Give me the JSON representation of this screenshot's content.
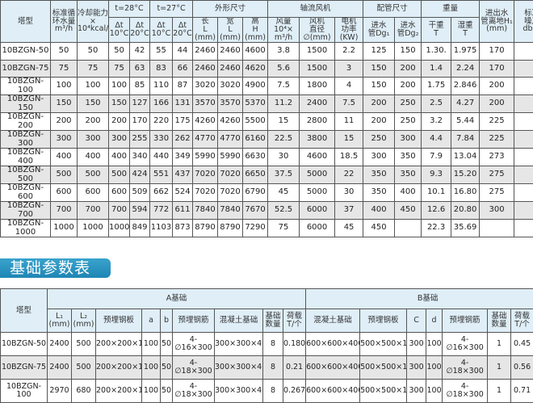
{
  "main_table": {
    "header_row1": [
      {
        "text": "塔型",
        "rs": 2
      },
      {
        "text": "标准循\n环水量\nm³/h",
        "rs": 2
      },
      {
        "text": "冷却能力\n×\n10⁴kcal/h",
        "rs": 2
      },
      {
        "text": "t=28°C",
        "cs": 2
      },
      {
        "text": "t=27°C",
        "cs": 2
      },
      {
        "text": "外形尺寸",
        "cs": 3
      },
      {
        "text": "轴流风机",
        "cs": 3
      },
      {
        "text": "配管尺寸",
        "cs": 2
      },
      {
        "text": "重量",
        "cs": 2
      },
      {
        "text": "进出水\n管离地H₁\n(mm)",
        "rs": 2
      },
      {
        "text": "标准\n噪声\ndb(A",
        "rs": 2
      }
    ],
    "header_row2": [
      "Δt\n10°C",
      "Δt\n20°C",
      "Δt\n10°C",
      "Δt\n20°C",
      "长\nL\n(mm)",
      "宽\nL\n(mm)",
      "高\nH\n(mm)",
      "风量10⁴×\nm³/h",
      "风机\n直径\n∅(mm)",
      "电机\n功率\n(KW)",
      "进水\n管Dg₁",
      "进水\n管Dg₂",
      "干重\nT",
      "湿重\nT"
    ],
    "rows": [
      [
        "10BZGN-50",
        "50",
        "50",
        "50",
        "42",
        "55",
        "44",
        "2460",
        "2460",
        "4600",
        "3.8",
        "1500",
        "2.2",
        "125",
        "150",
        "1.30.",
        "1.975",
        "170",
        ""
      ],
      [
        "10BZGN-75",
        "75",
        "75",
        "75",
        "63",
        "83",
        "66",
        "2460",
        "2460",
        "4620",
        "5.6",
        "1500",
        "3",
        "150",
        "200",
        "1.4",
        "2.24",
        "170",
        ""
      ],
      [
        "10BZGN-100",
        "100",
        "100",
        "100",
        "85",
        "110",
        "87",
        "3020",
        "3020",
        "4900",
        "7.5",
        "1800",
        "4",
        "150",
        "200",
        "1.75",
        "2.846",
        "200",
        ""
      ],
      [
        "10BZGN-150",
        "150",
        "150",
        "150",
        "127",
        "166",
        "131",
        "3570",
        "3570",
        "5370",
        "11.2",
        "2400",
        "7.5",
        "200",
        "250",
        "2.5",
        "4.27",
        "200",
        ""
      ],
      [
        "10BZGN-200",
        "200",
        "200",
        "200",
        "170",
        "220",
        "175",
        "4260",
        "4260",
        "5500",
        "15",
        "2800",
        "11",
        "200",
        "250",
        "3.2",
        "5.44",
        "225",
        ""
      ],
      [
        "10BZGN-300",
        "300",
        "300",
        "300",
        "255",
        "330",
        "262",
        "4770",
        "4770",
        "6160",
        "22.5",
        "3800",
        "15",
        "250",
        "300",
        "4.4",
        "7.84",
        "225",
        ""
      ],
      [
        "10BZGN-400",
        "400",
        "400",
        "400",
        "340",
        "440",
        "349",
        "5990",
        "5990",
        "6630",
        "30",
        "4600",
        "18.5",
        "300",
        "350",
        "7.9",
        "13.04",
        "273",
        ""
      ],
      [
        "10BZGN-500",
        "500",
        "500",
        "500",
        "424",
        "551",
        "437",
        "7020",
        "7020",
        "6650",
        "37.5",
        "5000",
        "22",
        "350",
        "350",
        "9.3",
        "15.20",
        "275",
        ""
      ],
      [
        "10BZGN-600",
        "600",
        "600",
        "600",
        "509",
        "662",
        "524",
        "7020",
        "7020",
        "6790",
        "45",
        "5000",
        "30",
        "350",
        "400",
        "10.1",
        "16.80",
        "275",
        ""
      ],
      [
        "10BZGN-700",
        "700",
        "700",
        "700",
        "594",
        "772",
        "611",
        "7840",
        "7840",
        "7670",
        "52.5",
        "6000",
        "37",
        "400",
        "450",
        "12.6",
        "20.80",
        "300",
        ""
      ],
      [
        "10BZGN-1000",
        "1000",
        "1000",
        "1000",
        "849",
        "1103",
        "873",
        "8790",
        "8790",
        "7290",
        "75",
        "6000",
        "45",
        "450",
        "",
        "22.3",
        "35.69",
        "",
        ""
      ]
    ]
  },
  "section_title": "基础参数表",
  "foundation_table": {
    "header_row1": [
      {
        "text": "塔型",
        "rs": 2
      },
      {
        "text": "A基础",
        "cs": 9
      },
      {
        "text": "B基础",
        "cs": 8
      }
    ],
    "header_row2": [
      "L₁\n(mm)",
      "L₂\n(mm)",
      "预埋钢板",
      "a",
      "b",
      "预埋钢筋",
      "混凝土基础",
      "基础\n数量",
      "荷载\nT/个",
      "混凝土基础",
      "预埋钢板",
      "C",
      "d",
      "预埋钢筋",
      "基础\n数量",
      "荷载\nT/个",
      ""
    ],
    "rows": [
      [
        "10BZGN-50",
        "2400",
        "500",
        "200×200×12",
        "100",
        "50",
        "4-∅16×300",
        "300×300×400",
        "8",
        "0.180",
        "600×600×400",
        "500×500×12",
        "300",
        "100",
        "4-∅16×300",
        "1",
        "0.45",
        ""
      ],
      [
        "10BZGN-75",
        "2400",
        "500",
        "200×200×12",
        "100",
        "50",
        "4-∅18×300",
        "300×300×400",
        "8",
        "0.21",
        "600×600×400",
        "500×500×12",
        "300",
        "100",
        "4-∅18×300",
        "1",
        "0.56",
        ""
      ],
      [
        "10BZGN-100",
        "2970",
        "680",
        "200×200×14",
        "100",
        "50",
        "4-∅18×300",
        "300×300×400",
        "8",
        "0.267",
        "600×600×400",
        "500×500×14",
        "300",
        "100",
        "4-∅18×300",
        "1",
        "0.71",
        ""
      ]
    ]
  },
  "colors": {
    "header_bg": "#dfeef7",
    "alt_row_bg": "#e6e6e6",
    "title_bg": "#1e86b5"
  }
}
